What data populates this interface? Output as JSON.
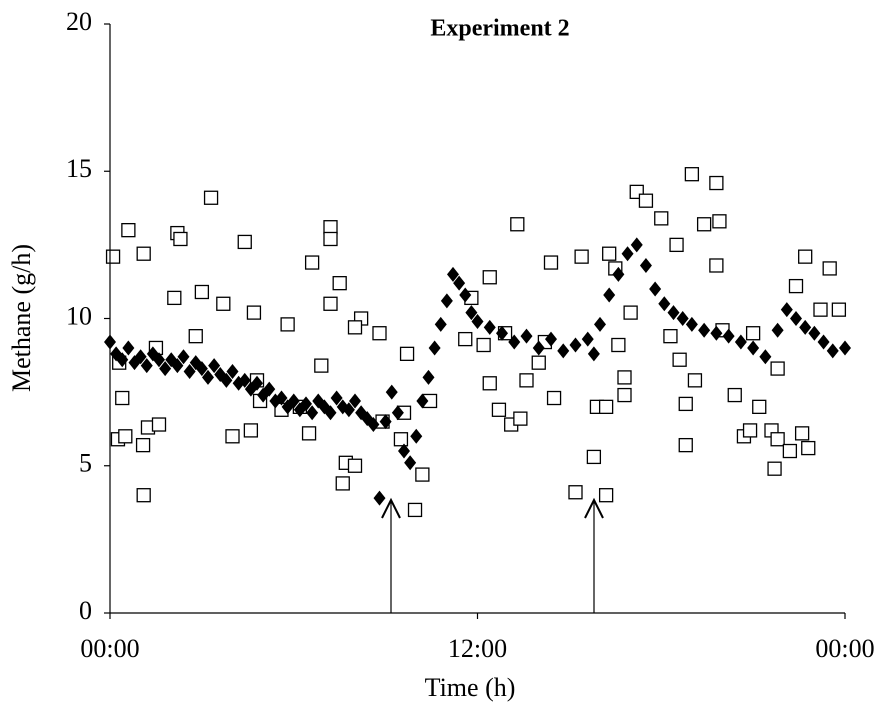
{
  "chart_data": {
    "type": "scatter",
    "title": "Experiment 2",
    "xlabel": "Time (h)",
    "ylabel": "Methane (g/h)",
    "xlim": [
      0,
      24
    ],
    "xticks": [
      {
        "value": 0,
        "label": "00:00"
      },
      {
        "value": 12,
        "label": "12:00"
      },
      {
        "value": 24,
        "label": "00:00"
      }
    ],
    "ylim": [
      0,
      20
    ],
    "yticks": [
      0,
      5,
      10,
      15,
      20
    ],
    "grid": false,
    "series": [
      {
        "marker": "square",
        "color": "#000000",
        "x": [
          0.1,
          0.6,
          1.1,
          0.26,
          0.5,
          1.1,
          1.08,
          1.24,
          1.6,
          0.4,
          2.2,
          2.3,
          2.1,
          3.3,
          3.0,
          3.7,
          4.4,
          4.7,
          4.0,
          4.6,
          4.9,
          5.6,
          5.8,
          6.2,
          6.5,
          6.6,
          6.9,
          7.2,
          7.2,
          7.5,
          7.2,
          7.6,
          7.7,
          8.0,
          8.2,
          8.0,
          8.8,
          8.9,
          9.7,
          9.96,
          9.5,
          10.2,
          10.45,
          11.8,
          11.6,
          12.4,
          13.3,
          12.9,
          12.4,
          12.7,
          13.1,
          13.4,
          13.6,
          14.4,
          14.2,
          14.5,
          15.2,
          15.4,
          15.8,
          16.2,
          15.9,
          16.2,
          16.3,
          16.5,
          16.6,
          16.8,
          16.8,
          17.2,
          17.5,
          18.0,
          18.5,
          19.0,
          18.6,
          18.8,
          18.8,
          19.1,
          19.4,
          19.8,
          19.9,
          19.8,
          20.4,
          20.7,
          20.9,
          21.2,
          21.6,
          21.7,
          21.8,
          21.8,
          22.2,
          22.4,
          22.7,
          22.8,
          22.6,
          23.5,
          23.8,
          23.2,
          0.3,
          1.5,
          2.8,
          4.8,
          9.6,
          12.2,
          14.0,
          17.0,
          18.3,
          20.0,
          21.0
        ],
        "values": [
          12.1,
          13.0,
          12.2,
          5.9,
          6.0,
          4.0,
          5.7,
          6.3,
          6.4,
          7.3,
          12.9,
          12.7,
          10.7,
          14.1,
          10.9,
          10.5,
          12.6,
          10.2,
          6.0,
          6.2,
          7.2,
          6.9,
          9.8,
          7.0,
          6.1,
          11.9,
          8.4,
          13.1,
          12.7,
          11.2,
          10.5,
          4.4,
          5.1,
          5.0,
          10.0,
          9.7,
          9.5,
          6.5,
          8.8,
          3.5,
          5.9,
          4.7,
          7.2,
          10.7,
          9.3,
          11.4,
          13.2,
          9.5,
          7.8,
          6.9,
          6.4,
          6.6,
          7.9,
          11.9,
          9.2,
          7.3,
          4.1,
          12.1,
          5.3,
          4.0,
          7.0,
          7.0,
          12.2,
          11.7,
          9.1,
          8.0,
          7.4,
          14.3,
          14.0,
          13.4,
          12.5,
          14.9,
          8.6,
          7.1,
          5.7,
          7.9,
          13.2,
          14.6,
          13.3,
          11.8,
          7.4,
          6.0,
          6.2,
          7.0,
          6.2,
          4.9,
          5.9,
          8.3,
          5.5,
          11.1,
          12.1,
          5.6,
          6.1,
          11.7,
          10.3,
          10.3,
          8.5,
          9.0,
          9.4,
          7.9,
          6.8,
          9.1,
          8.5,
          10.2,
          9.4,
          9.6,
          9.5
        ]
      },
      {
        "marker": "diamond",
        "color": "#000000",
        "x": [
          0,
          0.2,
          0.4,
          0.6,
          0.8,
          1.0,
          1.2,
          1.4,
          1.6,
          1.8,
          2.0,
          2.2,
          2.4,
          2.6,
          2.8,
          3.0,
          3.2,
          3.4,
          3.6,
          3.8,
          4.0,
          4.2,
          4.4,
          4.6,
          4.8,
          5.0,
          5.2,
          5.4,
          5.6,
          5.8,
          6.0,
          6.2,
          6.4,
          6.6,
          6.8,
          7.0,
          7.2,
          7.4,
          7.6,
          7.8,
          8.0,
          8.2,
          8.4,
          8.6,
          8.8,
          9.0,
          9.2,
          9.4,
          9.6,
          9.8,
          10.0,
          10.2,
          10.4,
          10.6,
          10.8,
          11.0,
          11.2,
          11.4,
          11.6,
          11.8,
          12.0,
          12.4,
          12.8,
          13.2,
          13.6,
          14.0,
          14.4,
          14.8,
          15.2,
          15.6,
          15.8,
          16.0,
          16.3,
          16.6,
          16.9,
          17.2,
          17.5,
          17.8,
          18.1,
          18.4,
          18.7,
          19.0,
          19.4,
          19.8,
          20.2,
          20.6,
          21.0,
          21.4,
          21.8,
          22.1,
          22.4,
          22.7,
          23.0,
          23.3,
          23.6,
          24.0
        ],
        "values": [
          9.2,
          8.8,
          8.6,
          9.0,
          8.5,
          8.7,
          8.4,
          8.8,
          8.6,
          8.3,
          8.6,
          8.4,
          8.7,
          8.2,
          8.5,
          8.3,
          8.0,
          8.4,
          8.1,
          7.9,
          8.2,
          7.8,
          7.9,
          7.6,
          7.8,
          7.4,
          7.6,
          7.2,
          7.3,
          7.0,
          7.2,
          6.9,
          7.1,
          6.8,
          7.2,
          7.0,
          6.8,
          7.3,
          7.0,
          6.9,
          7.2,
          6.8,
          6.6,
          6.4,
          3.9,
          6.5,
          7.5,
          6.8,
          5.5,
          5.1,
          6.0,
          7.2,
          8.0,
          9.0,
          9.8,
          10.6,
          11.5,
          11.2,
          10.8,
          10.2,
          9.9,
          9.7,
          9.5,
          9.2,
          9.4,
          9.0,
          9.3,
          8.9,
          9.1,
          9.3,
          8.8,
          9.8,
          10.8,
          11.5,
          12.2,
          12.5,
          11.8,
          11.0,
          10.5,
          10.2,
          10.0,
          9.8,
          9.6,
          9.5,
          9.4,
          9.2,
          9.0,
          8.7,
          9.6,
          10.3,
          10.0,
          9.7,
          9.5,
          9.2,
          8.9,
          9.0
        ]
      }
    ]
  }
}
